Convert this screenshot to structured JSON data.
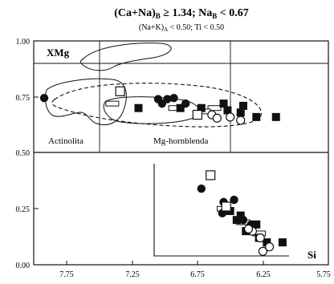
{
  "chart_data": {
    "type": "scatter",
    "title_main": "(Ca+Na)",
    "title_main_sub": "B",
    "title_main_rest": " ≥ 1.34; Na",
    "title_main_sub2": "B",
    "title_main_end": " < 0.67",
    "subtitle_a": "(Na+K)",
    "subtitle_sub": "A",
    "subtitle_rest": " < 0.50; Ti < 0.50",
    "upper_panel": {
      "ylabel": "XMg",
      "region_labels": [
        "Actinolita",
        "Mg-hornblenda"
      ],
      "x_reversed": true,
      "xlim": [
        8.0,
        5.75
      ],
      "ylim": [
        0.5,
        1.0
      ],
      "y_divisions": [
        0.9
      ],
      "x_divisions": [
        7.5,
        6.5
      ]
    },
    "lower_panel": {
      "xlabel": "Si",
      "x_reversed": true,
      "xlim": [
        8.0,
        5.75
      ],
      "ylim": [
        0.0,
        0.5
      ]
    },
    "y_ticks": [
      "1.00",
      "0.75",
      "0.50",
      "0.25",
      "0.00"
    ],
    "y_tick_values": [
      1.0,
      0.75,
      0.5,
      0.25,
      0.0
    ],
    "x_ticks": [
      "7.75",
      "7.25",
      "6.75",
      "6.25",
      "5.75"
    ],
    "x_tick_values": [
      7.75,
      7.25,
      6.75,
      6.25,
      5.75
    ],
    "upper_series": {
      "filled_circle": [
        [
          7.92,
          0.745
        ],
        [
          7.05,
          0.74
        ],
        [
          6.98,
          0.74
        ],
        [
          6.93,
          0.745
        ],
        [
          6.84,
          0.72
        ],
        [
          7.02,
          0.72
        ]
      ],
      "filled_square": [
        [
          6.88,
          0.7
        ],
        [
          6.72,
          0.7
        ],
        [
          6.52,
          0.69
        ],
        [
          6.42,
          0.68
        ],
        [
          6.3,
          0.66
        ],
        [
          6.15,
          0.66
        ],
        [
          6.4,
          0.71
        ],
        [
          7.2,
          0.7
        ],
        [
          6.55,
          0.72
        ]
      ],
      "open_square": [
        [
          7.34,
          0.775
        ],
        [
          6.75,
          0.67
        ]
      ],
      "open_circle": [
        [
          6.64,
          0.67
        ],
        [
          6.5,
          0.66
        ],
        [
          6.42,
          0.645
        ],
        [
          6.6,
          0.655
        ]
      ],
      "rectangle_mark": [
        [
          7.4,
          0.72
        ],
        [
          6.92,
          0.7
        ],
        [
          6.62,
          0.7
        ],
        [
          6.7,
          0.685
        ]
      ]
    },
    "lower_series": {
      "filled_circle": [
        [
          6.72,
          0.34
        ],
        [
          6.55,
          0.28
        ],
        [
          6.47,
          0.29
        ],
        [
          6.56,
          0.23
        ],
        [
          6.4,
          0.2
        ],
        [
          6.34,
          0.18
        ]
      ],
      "filled_square": [
        [
          6.5,
          0.24
        ],
        [
          6.42,
          0.22
        ],
        [
          6.3,
          0.18
        ],
        [
          6.28,
          0.12
        ],
        [
          6.22,
          0.1
        ],
        [
          6.1,
          0.1
        ],
        [
          6.38,
          0.15
        ],
        [
          6.45,
          0.2
        ]
      ],
      "open_square": [
        [
          6.65,
          0.4
        ],
        [
          6.53,
          0.26
        ]
      ],
      "open_circle": [
        [
          6.33,
          0.15
        ],
        [
          6.27,
          0.12
        ],
        [
          6.25,
          0.06
        ],
        [
          6.2,
          0.08
        ],
        [
          6.36,
          0.16
        ]
      ],
      "rectangle_mark": [
        [
          6.55,
          0.25
        ],
        [
          6.4,
          0.19
        ],
        [
          6.28,
          0.14
        ]
      ]
    }
  }
}
